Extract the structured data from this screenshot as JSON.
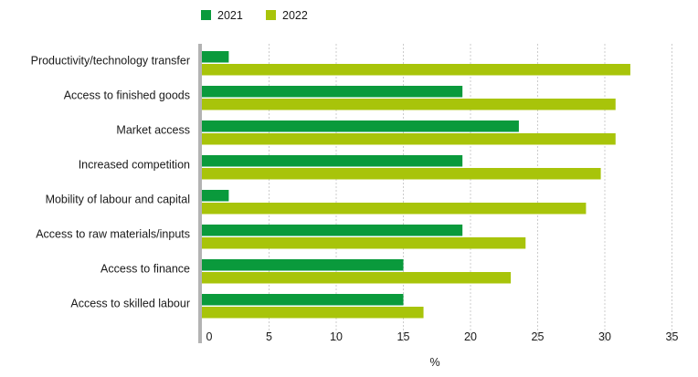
{
  "chart_data": {
    "type": "bar",
    "orientation": "horizontal",
    "categories": [
      "Productivity/technology transfer",
      "Access to finished goods",
      "Market access",
      "Increased competition",
      "Mobility of labour and capital",
      "Access to raw materials/inputs",
      "Access to finance",
      "Access to skilled labour"
    ],
    "series": [
      {
        "name": "2021",
        "color": "#0a9a3c",
        "values": [
          2,
          19.4,
          23.6,
          19.4,
          2,
          19.4,
          15,
          15
        ]
      },
      {
        "name": "2022",
        "color": "#a8c40a",
        "values": [
          31.9,
          30.8,
          30.8,
          29.7,
          28.6,
          24.1,
          23,
          16.5
        ]
      }
    ],
    "xlabel": "%",
    "ylabel": "",
    "title": "",
    "xlim": [
      0,
      35
    ],
    "xticks": [
      0,
      5,
      10,
      15,
      20,
      25,
      30,
      35
    ],
    "grid": "vertical dashed",
    "legend": "top-left"
  }
}
